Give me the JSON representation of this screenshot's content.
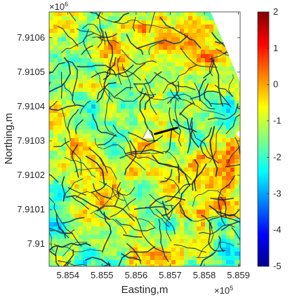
{
  "chart_data": {
    "type": "heatmap",
    "title": "",
    "xlabel": "Easting,m",
    "ylabel": "Northing,m",
    "x_exponent_label": {
      "base": "×10",
      "exp": "5"
    },
    "y_exponent_label": {
      "base": "×10",
      "exp": "6"
    },
    "x_tick_labels": [
      "5.854",
      "5.855",
      "5.856",
      "5.857",
      "5.858",
      "5.859"
    ],
    "x_tick_values": [
      585400,
      585500,
      585600,
      585700,
      585800,
      585900
    ],
    "y_tick_labels": [
      "7.91",
      "7.9101",
      "7.9102",
      "7.9103",
      "7.9104",
      "7.9105",
      "7.9106"
    ],
    "y_tick_values": [
      7910000,
      7910100,
      7910200,
      7910300,
      7910400,
      7910500,
      7910600
    ],
    "xlim": [
      585345,
      585905
    ],
    "ylim": [
      7909935,
      7910675
    ],
    "colorbar": {
      "colormap": "jet",
      "range": [
        -5,
        2
      ],
      "tick_labels": [
        "2",
        "1",
        "0",
        "-1",
        "-2",
        "-3",
        "-4",
        "-5"
      ],
      "tick_values": [
        2,
        1,
        0,
        -1,
        -2,
        -3,
        -4,
        -5
      ]
    },
    "dominant_value_range": [
      -1.5,
      -0.5
    ],
    "no_data_color": "#ffffff",
    "markers": [
      {
        "kind": "triangle",
        "color": "#ffffff",
        "x": 585635,
        "y": 7910318
      },
      {
        "kind": "line",
        "color": "#000000",
        "x": [
          585655,
          585720
        ],
        "y": [
          7910320,
          7910338
        ]
      },
      {
        "kind": "circle",
        "color": "#ffffff",
        "x": 585902,
        "y": 7910320
      }
    ]
  }
}
